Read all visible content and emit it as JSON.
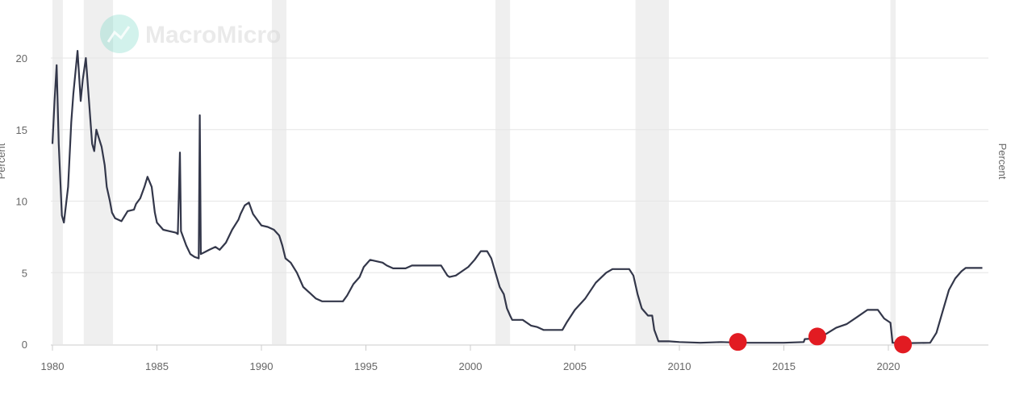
{
  "watermark": {
    "brand": "MacroMicro"
  },
  "colors": {
    "line": "#33374a",
    "marker": "#e21b22",
    "recession_band": "#efefef",
    "grid": "#e6e6e6",
    "axis_text": "#666666",
    "watermark_icon": "#7fdbc9"
  },
  "chart_data": {
    "type": "line",
    "title": "",
    "xlabel": "",
    "ylabel_left": "Percent",
    "ylabel_right": "Percent",
    "xlim": [
      1980,
      2024.7
    ],
    "ylim": [
      0,
      23
    ],
    "yticks": [
      0,
      5,
      10,
      15,
      20
    ],
    "xticks": [
      1980,
      1985,
      1990,
      1995,
      2000,
      2005,
      2010,
      2015,
      2020
    ],
    "grid": true,
    "recessions": [
      [
        1980.0,
        1980.5
      ],
      [
        1981.5,
        1982.9
      ],
      [
        1990.5,
        1991.2
      ],
      [
        2001.2,
        2001.9
      ],
      [
        2007.9,
        2009.5
      ],
      [
        2020.1,
        2020.35
      ]
    ],
    "series": [
      {
        "values": [
          [
            1980.0,
            14.0
          ],
          [
            1980.1,
            17.0
          ],
          [
            1980.2,
            19.5
          ],
          [
            1980.3,
            14.0
          ],
          [
            1980.45,
            9.0
          ],
          [
            1980.55,
            8.5
          ],
          [
            1980.75,
            11.0
          ],
          [
            1980.9,
            15.5
          ],
          [
            1981.0,
            17.5
          ],
          [
            1981.1,
            19.0
          ],
          [
            1981.2,
            20.5
          ],
          [
            1981.35,
            17.0
          ],
          [
            1981.45,
            18.5
          ],
          [
            1981.6,
            20.0
          ],
          [
            1981.75,
            17.0
          ],
          [
            1981.9,
            14.0
          ],
          [
            1982.0,
            13.5
          ],
          [
            1982.1,
            15.0
          ],
          [
            1982.2,
            14.5
          ],
          [
            1982.35,
            13.8
          ],
          [
            1982.5,
            12.5
          ],
          [
            1982.6,
            11.0
          ],
          [
            1982.75,
            10.0
          ],
          [
            1982.85,
            9.2
          ],
          [
            1983.0,
            8.8
          ],
          [
            1983.3,
            8.6
          ],
          [
            1983.6,
            9.3
          ],
          [
            1983.9,
            9.4
          ],
          [
            1984.0,
            9.8
          ],
          [
            1984.2,
            10.2
          ],
          [
            1984.4,
            11.0
          ],
          [
            1984.55,
            11.7
          ],
          [
            1984.75,
            11.0
          ],
          [
            1984.9,
            9.2
          ],
          [
            1985.0,
            8.5
          ],
          [
            1985.3,
            8.0
          ],
          [
            1985.6,
            7.9
          ],
          [
            1985.9,
            7.8
          ],
          [
            1986.0,
            7.7
          ],
          [
            1986.1,
            13.4
          ],
          [
            1986.15,
            7.9
          ],
          [
            1986.4,
            6.9
          ],
          [
            1986.6,
            6.3
          ],
          [
            1986.8,
            6.1
          ],
          [
            1987.0,
            6.0
          ],
          [
            1987.05,
            16.0
          ],
          [
            1987.1,
            6.3
          ],
          [
            1987.5,
            6.6
          ],
          [
            1987.8,
            6.8
          ],
          [
            1988.0,
            6.6
          ],
          [
            1988.3,
            7.1
          ],
          [
            1988.6,
            8.0
          ],
          [
            1988.9,
            8.7
          ],
          [
            1989.0,
            9.1
          ],
          [
            1989.2,
            9.7
          ],
          [
            1989.4,
            9.9
          ],
          [
            1989.6,
            9.1
          ],
          [
            1989.8,
            8.7
          ],
          [
            1990.0,
            8.3
          ],
          [
            1990.3,
            8.2
          ],
          [
            1990.6,
            8.0
          ],
          [
            1990.85,
            7.6
          ],
          [
            1991.0,
            6.9
          ],
          [
            1991.15,
            6.0
          ],
          [
            1991.4,
            5.7
          ],
          [
            1991.7,
            5.0
          ],
          [
            1992.0,
            4.0
          ],
          [
            1992.3,
            3.6
          ],
          [
            1992.6,
            3.2
          ],
          [
            1992.9,
            3.0
          ],
          [
            1993.2,
            3.0
          ],
          [
            1993.5,
            3.0
          ],
          [
            1993.9,
            3.0
          ],
          [
            1994.1,
            3.4
          ],
          [
            1994.4,
            4.2
          ],
          [
            1994.7,
            4.7
          ],
          [
            1994.9,
            5.4
          ],
          [
            1995.2,
            5.9
          ],
          [
            1995.5,
            5.8
          ],
          [
            1995.8,
            5.7
          ],
          [
            1996.0,
            5.5
          ],
          [
            1996.3,
            5.3
          ],
          [
            1996.6,
            5.3
          ],
          [
            1996.9,
            5.3
          ],
          [
            1997.2,
            5.5
          ],
          [
            1997.6,
            5.5
          ],
          [
            1997.9,
            5.5
          ],
          [
            1998.2,
            5.5
          ],
          [
            1998.6,
            5.5
          ],
          [
            1998.9,
            4.8
          ],
          [
            1999.0,
            4.7
          ],
          [
            1999.3,
            4.8
          ],
          [
            1999.6,
            5.1
          ],
          [
            1999.9,
            5.4
          ],
          [
            2000.2,
            5.9
          ],
          [
            2000.5,
            6.5
          ],
          [
            2000.8,
            6.5
          ],
          [
            2001.0,
            6.0
          ],
          [
            2001.2,
            5.0
          ],
          [
            2001.4,
            4.0
          ],
          [
            2001.6,
            3.5
          ],
          [
            2001.75,
            2.5
          ],
          [
            2001.9,
            2.0
          ],
          [
            2002.0,
            1.7
          ],
          [
            2002.5,
            1.7
          ],
          [
            2002.9,
            1.3
          ],
          [
            2003.2,
            1.2
          ],
          [
            2003.5,
            1.0
          ],
          [
            2004.0,
            1.0
          ],
          [
            2004.4,
            1.0
          ],
          [
            2004.6,
            1.5
          ],
          [
            2005.0,
            2.4
          ],
          [
            2005.5,
            3.2
          ],
          [
            2006.0,
            4.3
          ],
          [
            2006.5,
            5.0
          ],
          [
            2006.8,
            5.25
          ],
          [
            2007.2,
            5.25
          ],
          [
            2007.6,
            5.25
          ],
          [
            2007.8,
            4.8
          ],
          [
            2008.0,
            3.5
          ],
          [
            2008.2,
            2.5
          ],
          [
            2008.5,
            2.0
          ],
          [
            2008.7,
            2.0
          ],
          [
            2008.8,
            1.0
          ],
          [
            2009.0,
            0.2
          ],
          [
            2009.5,
            0.2
          ],
          [
            2010.0,
            0.15
          ],
          [
            2011.0,
            0.1
          ],
          [
            2012.0,
            0.15
          ],
          [
            2013.0,
            0.1
          ],
          [
            2014.0,
            0.1
          ],
          [
            2015.0,
            0.1
          ],
          [
            2015.95,
            0.15
          ],
          [
            2016.0,
            0.36
          ],
          [
            2016.5,
            0.4
          ],
          [
            2017.0,
            0.7
          ],
          [
            2017.5,
            1.15
          ],
          [
            2018.0,
            1.4
          ],
          [
            2018.5,
            1.9
          ],
          [
            2019.0,
            2.4
          ],
          [
            2019.5,
            2.4
          ],
          [
            2019.8,
            1.8
          ],
          [
            2020.1,
            1.5
          ],
          [
            2020.2,
            0.1
          ],
          [
            2021.0,
            0.08
          ],
          [
            2022.0,
            0.1
          ],
          [
            2022.3,
            0.8
          ],
          [
            2022.6,
            2.3
          ],
          [
            2022.9,
            3.8
          ],
          [
            2023.2,
            4.6
          ],
          [
            2023.5,
            5.1
          ],
          [
            2023.7,
            5.33
          ],
          [
            2024.5,
            5.33
          ]
        ]
      }
    ],
    "markers": [
      {
        "x": 2012.8,
        "y": 0.16
      },
      {
        "x": 2016.6,
        "y": 0.54
      },
      {
        "x": 2020.7,
        "y": -0.02
      }
    ]
  }
}
